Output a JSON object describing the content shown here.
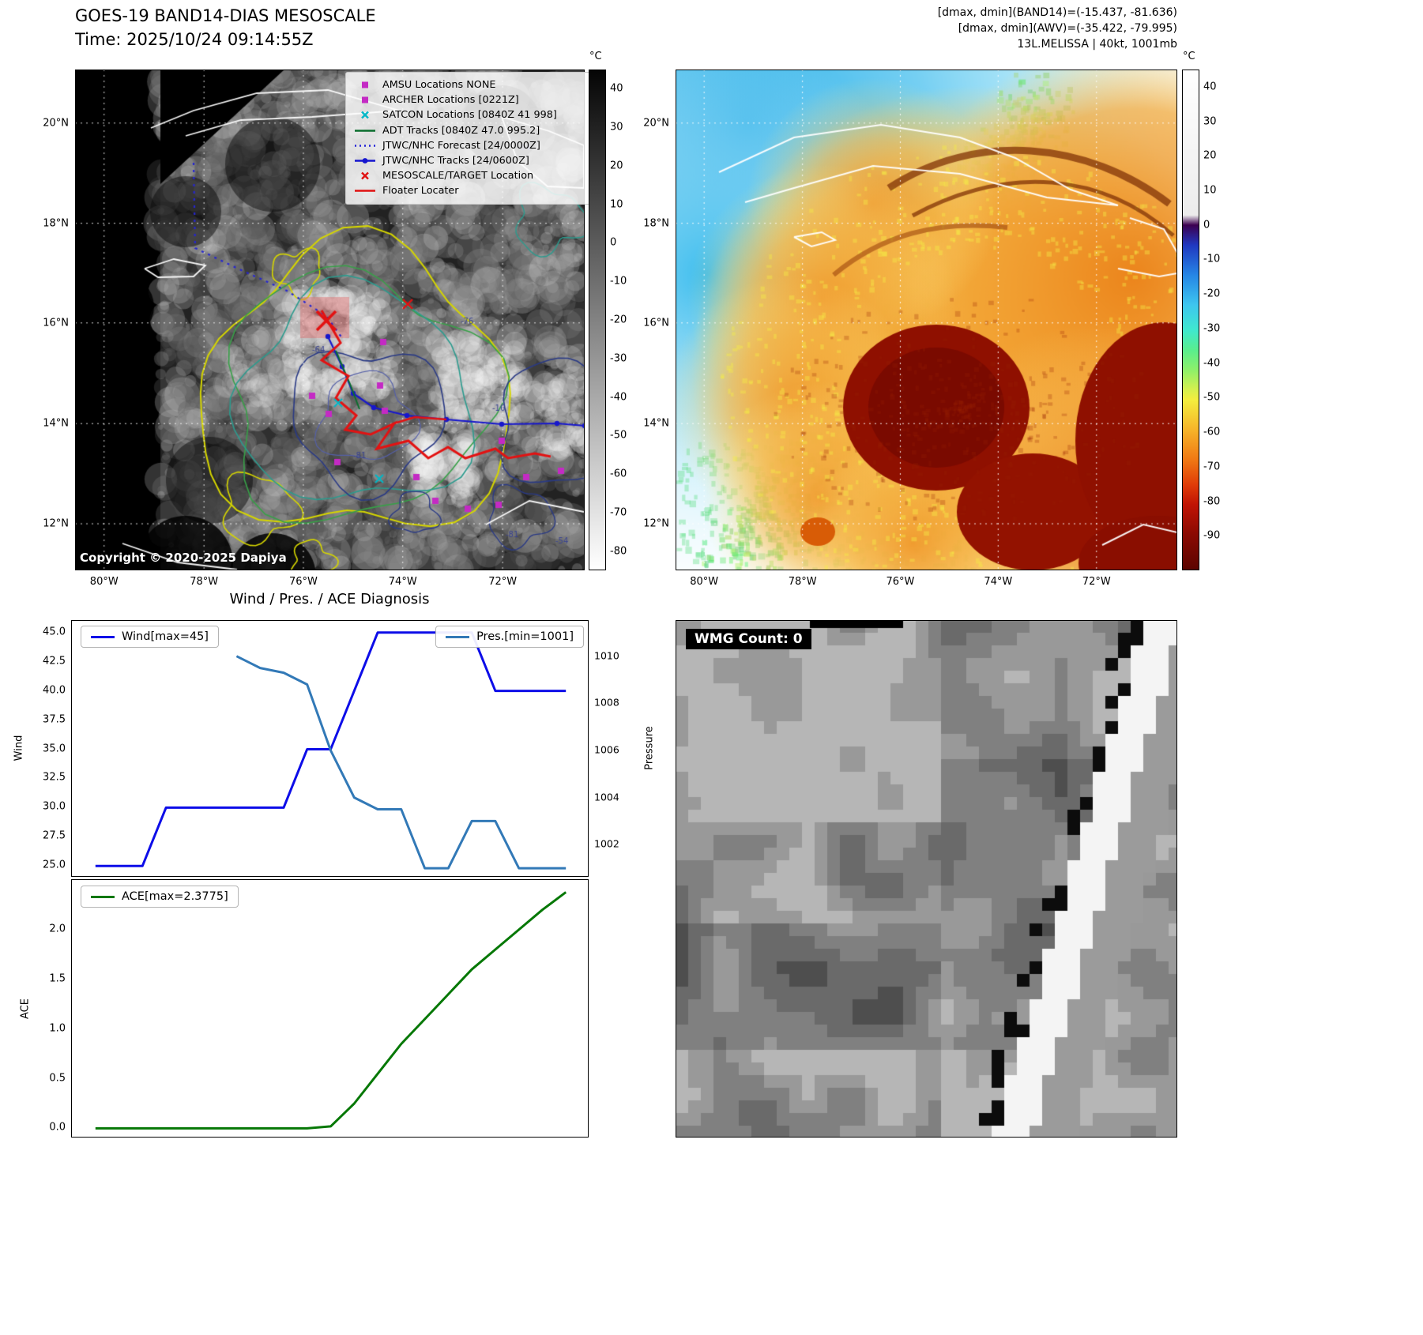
{
  "panel1": {
    "title_line1": "GOES-19 BAND14-DIAS MESOSCALE",
    "title_line2": "Time: 2025/10/24 09:14:55Z",
    "copyright": "Copyright © 2020-2025 Dapiya",
    "colorbar_unit": "°C",
    "colorbar_ticks": [
      "40",
      "30",
      "20",
      "10",
      "0",
      "-10",
      "-20",
      "-30",
      "-40",
      "-50",
      "-60",
      "-70",
      "-80"
    ],
    "lat_ticks": [
      "20°N",
      "18°N",
      "16°N",
      "14°N",
      "12°N"
    ],
    "lon_ticks": [
      "80°W",
      "78°W",
      "76°W",
      "74°W",
      "72°W"
    ],
    "contour_labels": [
      "-64",
      "-76",
      "-81",
      "-64",
      "-54",
      "-16",
      "-81"
    ],
    "legend": [
      {
        "marker": "square",
        "color": "#c42ac4",
        "label": "AMSU Locations NONE"
      },
      {
        "marker": "square",
        "color": "#c42ac4",
        "label": "ARCHER Locations [0221Z]"
      },
      {
        "marker": "x",
        "color": "#00b7c7",
        "label": "SATCON Locations [0840Z 41 998]"
      },
      {
        "marker": "line",
        "color": "#0b6e2e",
        "label": "ADT Tracks [0840Z 47.0 995.2]"
      },
      {
        "marker": "dotted-line",
        "color": "#2424d8",
        "label": "JTWC/NHC Forecast [24/0000Z]"
      },
      {
        "marker": "line-dot",
        "color": "#1616cf",
        "label": "JTWC/NHC Tracks [24/0600Z]"
      },
      {
        "marker": "x",
        "color": "#e01212",
        "label": "MESOSCALE/TARGET Location"
      },
      {
        "marker": "line",
        "color": "#e01212",
        "label": "Floater Locater"
      }
    ]
  },
  "panel2": {
    "info_lines": [
      "[dmax, dmin](BAND14)=(-15.437, -81.636)",
      "[dmax, dmin](AWV)=(-35.422, -79.995)",
      "13L.MELISSA | 40kt, 1001mb"
    ],
    "colorbar_unit": "°C",
    "colorbar_ticks": [
      "40",
      "30",
      "20",
      "10",
      "0",
      "-10",
      "-20",
      "-30",
      "-40",
      "-50",
      "-60",
      "-70",
      "-80",
      "-90"
    ],
    "lat_ticks": [
      "20°N",
      "18°N",
      "16°N",
      "14°N",
      "12°N"
    ],
    "lon_ticks": [
      "80°W",
      "78°W",
      "76°W",
      "74°W",
      "72°W"
    ]
  },
  "charts": {
    "title": "Wind / Pres. / ACE Diagnosis"
  },
  "panel4": {
    "label": "WMG Count: 0"
  },
  "chart_data": [
    {
      "type": "line",
      "title": "Wind / Pres. / ACE Diagnosis",
      "x": [
        0,
        1,
        2,
        3,
        4,
        5,
        6,
        7,
        8,
        9,
        10,
        11,
        12,
        13,
        14,
        15,
        16,
        17,
        18,
        19,
        20
      ],
      "xlim": [
        -1,
        21
      ],
      "series": [
        {
          "name": "Wind[max=45]",
          "color": "#0d0de8",
          "axis": "left",
          "values": [
            25,
            25,
            25,
            30,
            30,
            30,
            30,
            30,
            30,
            35,
            35,
            40,
            45,
            45,
            45,
            45,
            45,
            40,
            40,
            40,
            40
          ]
        },
        {
          "name": "Pres.[min=1001]",
          "color": "#3279b7",
          "axis": "right",
          "values": [
            null,
            null,
            null,
            null,
            null,
            null,
            1010,
            1009.5,
            1009.3,
            1008.8,
            1006,
            1004,
            1003.5,
            1003.5,
            1001,
            1001,
            1003,
            1003,
            1001,
            1001,
            1001
          ]
        }
      ],
      "left_axis": {
        "label": "Wind",
        "tick_labels": [
          "45.0",
          "42.5",
          "40.0",
          "37.5",
          "35.0",
          "32.5",
          "30.0",
          "27.5",
          "25.0"
        ],
        "lim": [
          24,
          46
        ]
      },
      "right_axis": {
        "label": "Pressure",
        "tick_labels": [
          "1010",
          "1008",
          "1006",
          "1004",
          "1002"
        ],
        "lim": [
          1000.6,
          1011.5
        ]
      },
      "legend_position": "top-left / top-right",
      "grid": false
    },
    {
      "type": "line",
      "x": [
        0,
        1,
        2,
        3,
        4,
        5,
        6,
        7,
        8,
        9,
        10,
        11,
        12,
        13,
        14,
        15,
        16,
        17,
        18,
        19,
        20
      ],
      "xlim": [
        -1,
        21
      ],
      "series": [
        {
          "name": "ACE[max=2.3775]",
          "color": "#067806",
          "axis": "left",
          "values": [
            0,
            0,
            0,
            0,
            0,
            0,
            0,
            0,
            0,
            0,
            0.02,
            0.25,
            0.55,
            0.85,
            1.1,
            1.35,
            1.6,
            1.8,
            2.0,
            2.2,
            2.3775
          ]
        }
      ],
      "left_axis": {
        "label": "ACE",
        "tick_labels": [
          "0.0",
          "0.5",
          "1.0",
          "1.5",
          "2.0"
        ],
        "lim": [
          -0.1,
          2.5
        ]
      },
      "legend_position": "top-left",
      "grid": false
    }
  ]
}
